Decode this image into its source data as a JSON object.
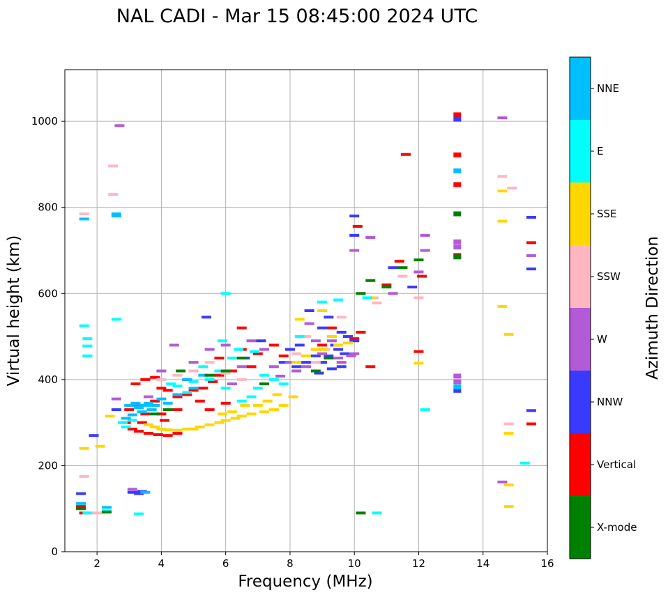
{
  "chart_data": {
    "type": "scatter",
    "title": "NAL CADI - Mar 15 08:45:00 2024 UTC",
    "xlabel": "Frequency (MHz)",
    "ylabel": "Virtual height (km)",
    "xlim": [
      1,
      16
    ],
    "ylim": [
      0,
      1120
    ],
    "xticks": [
      2,
      4,
      6,
      8,
      10,
      12,
      14,
      16
    ],
    "yticks": [
      0,
      200,
      400,
      600,
      800,
      1000
    ],
    "grid": true,
    "colorbar": {
      "label": "Azimuth Direction",
      "categories": [
        "X-mode",
        "Vertical",
        "NNW",
        "W",
        "SSW",
        "SSE",
        "E",
        "NNE"
      ],
      "colors": [
        "#008000",
        "#ff0000",
        "#3a3aff",
        "#b35ad6",
        "#ffb6c1",
        "#ffd700",
        "#00ffff",
        "#00bfff"
      ]
    },
    "series": [
      {
        "name": "Vertical",
        "points": [
          [
            13.2,
            1015
          ],
          [
            13.2,
            922
          ],
          [
            11.6,
            923
          ],
          [
            13.2,
            853
          ],
          [
            10.1,
            756
          ],
          [
            15.5,
            718
          ],
          [
            13.2,
            688
          ],
          [
            11.4,
            675
          ],
          [
            12.1,
            640
          ],
          [
            11.0,
            620
          ],
          [
            10.2,
            510
          ],
          [
            10.0,
            495
          ],
          [
            9.3,
            520
          ],
          [
            8.8,
            470
          ],
          [
            7.5,
            480
          ],
          [
            7.0,
            460
          ],
          [
            6.5,
            470
          ],
          [
            6.8,
            430
          ],
          [
            6.2,
            420
          ],
          [
            5.8,
            410
          ],
          [
            5.6,
            395
          ],
          [
            5.3,
            380
          ],
          [
            5.0,
            375
          ],
          [
            4.8,
            365
          ],
          [
            4.5,
            360
          ],
          [
            4.2,
            375
          ],
          [
            4.0,
            380
          ],
          [
            3.8,
            405
          ],
          [
            3.5,
            400
          ],
          [
            3.2,
            390
          ],
          [
            3.8,
            350
          ],
          [
            4.5,
            330
          ],
          [
            4.0,
            320
          ],
          [
            3.5,
            320
          ],
          [
            3.0,
            330
          ],
          [
            2.9,
            300
          ],
          [
            3.1,
            285
          ],
          [
            3.3,
            280
          ],
          [
            3.6,
            275
          ],
          [
            3.9,
            272
          ],
          [
            4.2,
            270
          ],
          [
            4.5,
            275
          ],
          [
            3.4,
            300
          ],
          [
            4.1,
            305
          ],
          [
            5.2,
            350
          ],
          [
            5.5,
            330
          ],
          [
            6.0,
            345
          ],
          [
            4.8,
            400
          ],
          [
            5.8,
            450
          ],
          [
            15.5,
            297
          ],
          [
            1.5,
            105
          ],
          [
            1.6,
            90
          ],
          [
            10.5,
            430
          ],
          [
            12.0,
            465
          ],
          [
            6.5,
            520
          ],
          [
            7.8,
            455
          ],
          [
            9.0,
            480
          ]
        ]
      },
      {
        "name": "NNW",
        "points": [
          [
            13.2,
            1005
          ],
          [
            15.5,
            777
          ],
          [
            15.5,
            657
          ],
          [
            15.5,
            328
          ],
          [
            13.2,
            375
          ],
          [
            10.0,
            780
          ],
          [
            10.0,
            735
          ],
          [
            9.8,
            500
          ],
          [
            9.5,
            470
          ],
          [
            9.2,
            455
          ],
          [
            9.0,
            440
          ],
          [
            8.8,
            455
          ],
          [
            8.5,
            440
          ],
          [
            9.4,
            480
          ],
          [
            9.6,
            510
          ],
          [
            9.0,
            520
          ],
          [
            8.2,
            430
          ],
          [
            8.0,
            470
          ],
          [
            7.8,
            440
          ],
          [
            8.3,
            480
          ],
          [
            9.7,
            460
          ],
          [
            10.0,
            490
          ],
          [
            9.3,
            425
          ],
          [
            8.9,
            415
          ],
          [
            9.6,
            430
          ],
          [
            3.3,
            135
          ],
          [
            3.1,
            138
          ],
          [
            3.4,
            140
          ],
          [
            1.5,
            135
          ],
          [
            1.9,
            270
          ],
          [
            7.1,
            490
          ],
          [
            5.4,
            545
          ],
          [
            6.6,
            450
          ],
          [
            2.6,
            330
          ],
          [
            8.6,
            560
          ],
          [
            9.2,
            545
          ],
          [
            11.8,
            615
          ],
          [
            11.2,
            660
          ]
        ]
      },
      {
        "name": "W",
        "points": [
          [
            13.2,
            720
          ],
          [
            13.2,
            708
          ],
          [
            13.2,
            408
          ],
          [
            13.2,
            395
          ],
          [
            14.6,
            1008
          ],
          [
            14.6,
            162
          ],
          [
            15.5,
            688
          ],
          [
            10.5,
            730
          ],
          [
            10.0,
            700
          ],
          [
            12.2,
            735
          ],
          [
            12.2,
            700
          ],
          [
            12.0,
            650
          ],
          [
            11.2,
            600
          ],
          [
            9.5,
            450
          ],
          [
            9.0,
            460
          ],
          [
            8.5,
            430
          ],
          [
            8.2,
            420
          ],
          [
            8.0,
            440
          ],
          [
            8.8,
            490
          ],
          [
            9.3,
            490
          ],
          [
            10.0,
            460
          ],
          [
            9.6,
            440
          ],
          [
            7.5,
            430
          ],
          [
            7.2,
            470
          ],
          [
            6.8,
            490
          ],
          [
            6.5,
            430
          ],
          [
            6.0,
            480
          ],
          [
            5.5,
            470
          ],
          [
            5.0,
            440
          ],
          [
            4.4,
            480
          ],
          [
            4.0,
            420
          ],
          [
            3.6,
            360
          ],
          [
            3.2,
            340
          ],
          [
            2.6,
            355
          ],
          [
            2.7,
            990
          ],
          [
            3.1,
            145
          ],
          [
            8.6,
            530
          ],
          [
            9.9,
            455
          ],
          [
            7.7,
            408
          ],
          [
            6.2,
            390
          ]
        ]
      },
      {
        "name": "SSW",
        "points": [
          [
            14.9,
            845
          ],
          [
            14.8,
            297
          ],
          [
            14.6,
            872
          ],
          [
            12.0,
            590
          ],
          [
            11.5,
            640
          ],
          [
            10.7,
            578
          ],
          [
            9.3,
            500
          ],
          [
            8.8,
            440
          ],
          [
            8.2,
            460
          ],
          [
            9.1,
            470
          ],
          [
            8.5,
            500
          ],
          [
            6.5,
            400
          ],
          [
            6.0,
            415
          ],
          [
            5.5,
            440
          ],
          [
            5.0,
            420
          ],
          [
            4.5,
            410
          ],
          [
            4.0,
            400
          ],
          [
            1.6,
            785
          ],
          [
            2.5,
            896
          ],
          [
            2.5,
            830
          ],
          [
            1.6,
            175
          ],
          [
            2.0,
            90
          ],
          [
            10.6,
            590
          ],
          [
            9.6,
            545
          ]
        ]
      },
      {
        "name": "SSE",
        "points": [
          [
            14.6,
            838
          ],
          [
            14.6,
            768
          ],
          [
            14.6,
            570
          ],
          [
            14.8,
            505
          ],
          [
            14.8,
            275
          ],
          [
            14.8,
            155
          ],
          [
            14.8,
            105
          ],
          [
            12.0,
            438
          ],
          [
            10.5,
            590
          ],
          [
            9.5,
            480
          ],
          [
            9.0,
            470
          ],
          [
            8.5,
            455
          ],
          [
            8.2,
            440
          ],
          [
            9.3,
            500
          ],
          [
            8.8,
            470
          ],
          [
            9.8,
            485
          ],
          [
            8.1,
            360
          ],
          [
            7.8,
            340
          ],
          [
            7.5,
            330
          ],
          [
            7.2,
            325
          ],
          [
            7.0,
            340
          ],
          [
            6.8,
            320
          ],
          [
            6.5,
            315
          ],
          [
            6.3,
            310
          ],
          [
            6.0,
            305
          ],
          [
            5.8,
            300
          ],
          [
            5.5,
            295
          ],
          [
            5.2,
            290
          ],
          [
            5.0,
            285
          ],
          [
            4.8,
            285
          ],
          [
            4.5,
            282
          ],
          [
            4.2,
            283
          ],
          [
            4.0,
            285
          ],
          [
            3.8,
            290
          ],
          [
            3.6,
            295
          ],
          [
            6.2,
            325
          ],
          [
            5.9,
            320
          ],
          [
            7.3,
            350
          ],
          [
            7.6,
            365
          ],
          [
            6.6,
            340
          ],
          [
            2.4,
            315
          ],
          [
            2.1,
            245
          ],
          [
            1.6,
            240
          ],
          [
            9.0,
            560
          ],
          [
            8.3,
            540
          ]
        ]
      },
      {
        "name": "E",
        "points": [
          [
            15.3,
            206
          ],
          [
            12.2,
            330
          ],
          [
            10.7,
            90
          ],
          [
            7.5,
            400
          ],
          [
            7.0,
            380
          ],
          [
            6.8,
            360
          ],
          [
            6.5,
            350
          ],
          [
            6.0,
            380
          ],
          [
            5.8,
            420
          ],
          [
            5.5,
            400
          ],
          [
            5.3,
            430
          ],
          [
            5.0,
            395
          ],
          [
            4.8,
            370
          ],
          [
            4.5,
            385
          ],
          [
            4.3,
            390
          ],
          [
            6.2,
            450
          ],
          [
            5.9,
            490
          ],
          [
            6.4,
            470
          ],
          [
            7.2,
            410
          ],
          [
            7.8,
            390
          ],
          [
            2.9,
            290
          ],
          [
            3.1,
            305
          ],
          [
            1.6,
            525
          ],
          [
            1.7,
            495
          ],
          [
            1.7,
            478
          ],
          [
            1.7,
            455
          ],
          [
            2.6,
            540
          ],
          [
            6.9,
            465
          ],
          [
            8.3,
            500
          ],
          [
            9.0,
            580
          ],
          [
            9.5,
            585
          ],
          [
            10.4,
            590
          ],
          [
            6.0,
            600
          ],
          [
            2.8,
            300
          ],
          [
            3.3,
            88
          ],
          [
            1.7,
            90
          ],
          [
            2.3,
            95
          ]
        ]
      },
      {
        "name": "NNE",
        "points": [
          [
            13.2,
            885
          ],
          [
            13.2,
            383
          ],
          [
            1.6,
            773
          ],
          [
            2.6,
            785
          ],
          [
            2.6,
            780
          ],
          [
            3.5,
            340
          ],
          [
            3.3,
            335
          ],
          [
            3.2,
            345
          ],
          [
            3.0,
            340
          ],
          [
            3.4,
            325
          ],
          [
            3.7,
            330
          ],
          [
            3.1,
            318
          ],
          [
            3.6,
            345
          ],
          [
            2.9,
            310
          ],
          [
            3.5,
            138
          ],
          [
            1.5,
            112
          ],
          [
            2.3,
            103
          ],
          [
            4.8,
            400
          ],
          [
            5.3,
            410
          ],
          [
            4.5,
            365
          ],
          [
            4.0,
            355
          ],
          [
            5.0,
            380
          ],
          [
            3.8,
            340
          ],
          [
            4.2,
            345
          ]
        ]
      },
      {
        "name": "X-mode",
        "points": [
          [
            13.2,
            785
          ],
          [
            13.2,
            685
          ],
          [
            10.2,
            90
          ],
          [
            11.5,
            660
          ],
          [
            12.0,
            678
          ],
          [
            10.5,
            630
          ],
          [
            10.2,
            600
          ],
          [
            11.0,
            615
          ],
          [
            6.5,
            450
          ],
          [
            6.0,
            420
          ],
          [
            5.5,
            410
          ],
          [
            4.2,
            330
          ],
          [
            3.8,
            320
          ],
          [
            7.2,
            390
          ],
          [
            8.8,
            420
          ],
          [
            9.2,
            450
          ],
          [
            1.5,
            100
          ],
          [
            2.3,
            92
          ],
          [
            4.6,
            420
          ]
        ]
      }
    ]
  }
}
